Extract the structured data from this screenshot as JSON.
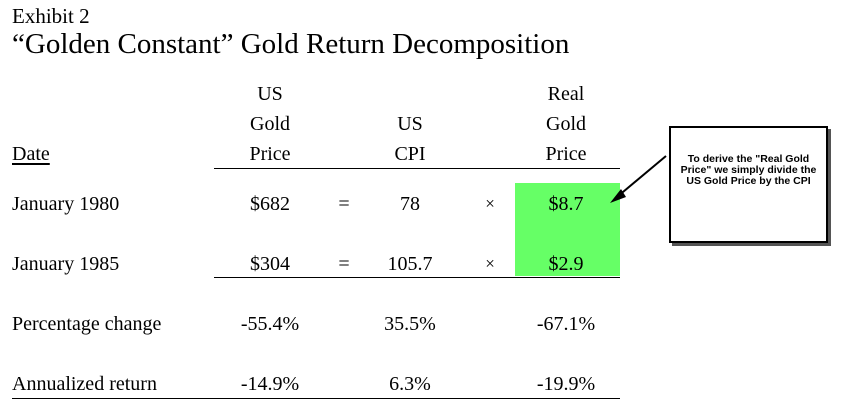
{
  "header": {
    "exhibit_label": "Exhibit 2",
    "title": "“Golden Constant” Gold Return Decomposition"
  },
  "columns": {
    "date": "Date",
    "us_gold_price": [
      "US",
      "Gold",
      "Price"
    ],
    "us_cpi": [
      "US",
      "CPI"
    ],
    "real_gold_price": [
      "Real",
      "Gold",
      "Price"
    ]
  },
  "rows": [
    {
      "label": "January 1980",
      "gold": "$682",
      "eq": "=",
      "cpi": "78",
      "times": "×",
      "real": "$8.7"
    },
    {
      "label": "January 1985",
      "gold": "$304",
      "eq": "=",
      "cpi": "105.7",
      "times": "×",
      "real": "$2.9"
    }
  ],
  "summary": [
    {
      "label": "Percentage change",
      "gold": "-55.4%",
      "cpi": "35.5%",
      "real": "-67.1%"
    },
    {
      "label": "Annualized return",
      "gold": "-14.9%",
      "cpi": "6.3%",
      "real": "-19.9%"
    }
  ],
  "callout": {
    "text": "To derive the \"Real Gold Price\" we simply divide the US Gold Price by the CPI"
  },
  "colors": {
    "highlight": "#66ff66"
  }
}
